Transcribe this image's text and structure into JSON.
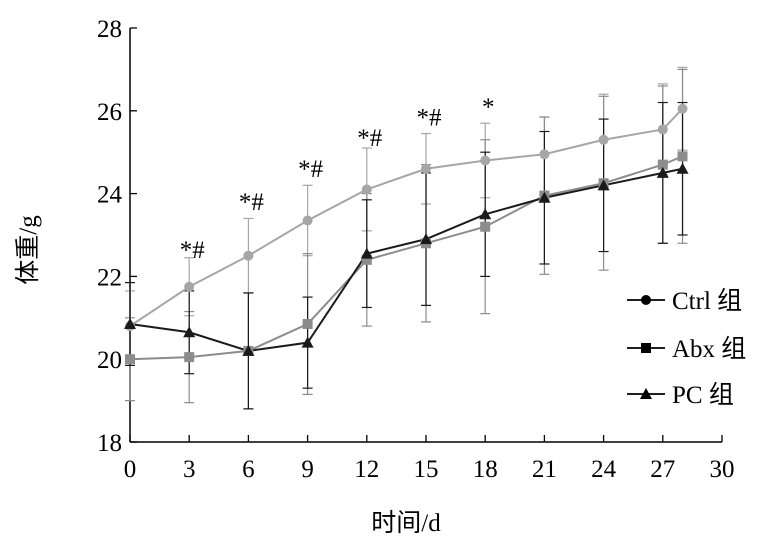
{
  "chart_data": {
    "type": "line",
    "xlabel": "时间/d",
    "ylabel": "体重/g",
    "xlim": [
      0,
      30
    ],
    "ylim": [
      18,
      28
    ],
    "xticks": [
      "0",
      "3",
      "6",
      "9",
      "12",
      "15",
      "18",
      "21",
      "24",
      "27",
      "30"
    ],
    "yticks": [
      "18",
      "20",
      "22",
      "24",
      "26",
      "28"
    ],
    "x": [
      0,
      3,
      6,
      9,
      12,
      15,
      18,
      21,
      24,
      27,
      28
    ],
    "series": [
      {
        "name": "Ctrl 组",
        "marker": "circle",
        "color": "#a6a6a6",
        "values": [
          20.8,
          21.75,
          22.5,
          23.35,
          24.1,
          24.6,
          24.8,
          24.95,
          25.3,
          25.55,
          26.05
        ],
        "errors": [
          0.85,
          0.7,
          0.9,
          0.85,
          1.0,
          0.85,
          0.9,
          0.9,
          1.1,
          1.1,
          1.0
        ]
      },
      {
        "name": "Abx 组",
        "marker": "square",
        "color": "#8c8c8c",
        "values": [
          20.0,
          20.05,
          20.2,
          20.85,
          22.4,
          22.8,
          23.2,
          23.95,
          24.25,
          24.7,
          24.9
        ],
        "errors": [
          1.0,
          1.1,
          1.4,
          1.7,
          1.6,
          1.9,
          2.1,
          1.9,
          2.1,
          1.9,
          2.1
        ]
      },
      {
        "name": "PC 组",
        "marker": "triangle",
        "color": "#1a1a1a",
        "values": [
          20.85,
          20.65,
          20.2,
          20.4,
          22.55,
          22.9,
          23.5,
          23.9,
          24.2,
          24.5,
          24.6
        ],
        "errors": [
          1.0,
          1.0,
          1.4,
          1.1,
          1.3,
          1.6,
          1.5,
          1.6,
          1.6,
          1.7,
          1.6
        ]
      }
    ],
    "annotations": [
      {
        "x": 3,
        "y": 22.45,
        "text": "*#"
      },
      {
        "x": 6,
        "y": 23.6,
        "text": "*#"
      },
      {
        "x": 9,
        "y": 24.4,
        "text": "*#"
      },
      {
        "x": 12,
        "y": 25.15,
        "text": "*#"
      },
      {
        "x": 15,
        "y": 25.65,
        "text": "*#"
      },
      {
        "x": 18,
        "y": 25.9,
        "text": "*"
      }
    ],
    "grid": false,
    "legend_position": "right"
  }
}
